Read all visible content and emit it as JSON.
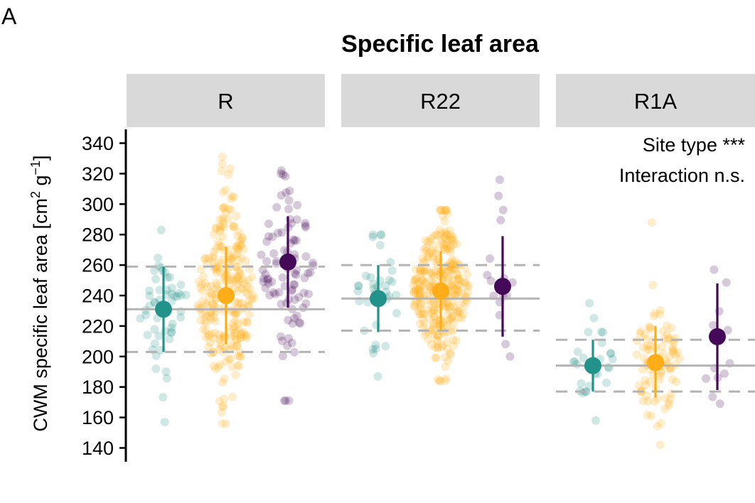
{
  "panel_label": "A",
  "chart_data": {
    "type": "scatter",
    "title": "Specific leaf area",
    "ylabel": {
      "prefix": "CWM specific leaf area [cm",
      "sup1": "2",
      "mid": " g",
      "sup2": "−1",
      "suffix": "]"
    },
    "ylim": [
      130,
      350
    ],
    "yticks": [
      140,
      160,
      180,
      200,
      220,
      240,
      260,
      280,
      300,
      320,
      340
    ],
    "colors": {
      "g1": "#23928a",
      "g2": "#fdad18",
      "g3": "#450a57",
      "ref": "#b3b3b3",
      "strip": "#d9d9d9"
    },
    "annotations": [
      "Site type ***",
      "Interaction n.s."
    ],
    "facets": [
      {
        "label": "R",
        "ref_mean": 231,
        "ref_low": 203,
        "ref_high": 259,
        "groups": [
          {
            "color": "g1",
            "mean": 231,
            "low": 203,
            "high": 259,
            "n": 55,
            "min": 157,
            "max": 283,
            "sd": 22,
            "spread": 0.85
          },
          {
            "color": "g2",
            "mean": 240,
            "low": 208,
            "high": 272,
            "n": 260,
            "min": 156,
            "max": 331,
            "sd": 30,
            "spread": 1.0
          },
          {
            "color": "g3",
            "mean": 262,
            "low": 232,
            "high": 292,
            "n": 95,
            "min": 171,
            "max": 322,
            "sd": 28,
            "spread": 0.95
          }
        ]
      },
      {
        "label": "R22",
        "ref_mean": 238,
        "ref_low": 217,
        "ref_high": 260,
        "groups": [
          {
            "color": "g1",
            "mean": 238,
            "low": 216,
            "high": 260,
            "n": 35,
            "min": 187,
            "max": 280,
            "sd": 18,
            "spread": 0.8
          },
          {
            "color": "g2",
            "mean": 243,
            "low": 217,
            "high": 269,
            "n": 300,
            "min": 184,
            "max": 296,
            "sd": 24,
            "spread": 1.0
          },
          {
            "color": "g3",
            "mean": 246,
            "low": 213,
            "high": 279,
            "n": 16,
            "min": 200,
            "max": 316,
            "sd": 30,
            "spread": 0.6
          }
        ]
      },
      {
        "label": "R1A",
        "ref_mean": 194,
        "ref_low": 177,
        "ref_high": 211,
        "groups": [
          {
            "color": "g1",
            "mean": 194,
            "low": 177,
            "high": 211,
            "n": 28,
            "min": 158,
            "max": 235,
            "sd": 15,
            "spread": 0.75
          },
          {
            "color": "g2",
            "mean": 196,
            "low": 173,
            "high": 220,
            "n": 90,
            "min": 142,
            "max": 288,
            "sd": 20,
            "spread": 0.9
          },
          {
            "color": "g3",
            "mean": 213,
            "low": 178,
            "high": 248,
            "n": 12,
            "min": 169,
            "max": 257,
            "sd": 30,
            "spread": 0.55
          }
        ]
      }
    ]
  }
}
